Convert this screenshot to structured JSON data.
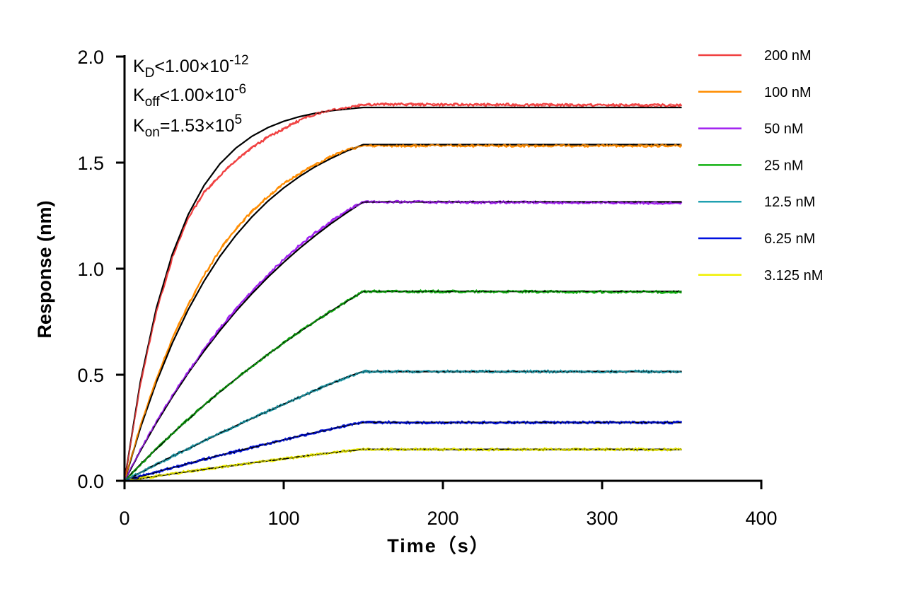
{
  "chart_data": {
    "type": "line",
    "xlabel": "Time（s）",
    "ylabel": "Response (nm)",
    "xlim": [
      0,
      400
    ],
    "ylim": [
      0,
      2.0
    ],
    "xticks": [
      "0",
      "100",
      "200",
      "300",
      "400"
    ],
    "yticks": [
      "0.0",
      "0.5",
      "1.0",
      "1.5",
      "2.0"
    ],
    "grid": false,
    "legend_position": "right",
    "fit_color": "#000000",
    "annotation": {
      "kd": {
        "base": "K",
        "sub": "D",
        "rel": "<1.00×10",
        "exp": "-12"
      },
      "koff": {
        "base": "K",
        "sub": "off",
        "rel": "<1.00×10",
        "exp": "-6"
      },
      "kon": {
        "base": "K",
        "sub": "on",
        "rel": "=1.53×10",
        "exp": "5"
      }
    },
    "x": [
      0,
      10,
      20,
      30,
      40,
      50,
      60,
      70,
      80,
      90,
      100,
      110,
      120,
      130,
      140,
      150,
      350
    ],
    "series": [
      {
        "name": "200 nM",
        "color": "#f04040",
        "values": [
          0,
          0.46,
          0.8,
          1.05,
          1.24,
          1.36,
          1.44,
          1.51,
          1.57,
          1.62,
          1.66,
          1.7,
          1.73,
          1.75,
          1.76,
          1.775,
          1.77
        ],
        "fit": [
          0,
          0.469,
          0.814,
          1.068,
          1.255,
          1.393,
          1.495,
          1.569,
          1.624,
          1.665,
          1.695,
          1.717,
          1.733,
          1.745,
          1.753,
          1.76,
          1.76
        ]
      },
      {
        "name": "100 nM",
        "color": "#ff8c00",
        "values": [
          0,
          0.26,
          0.48,
          0.67,
          0.83,
          0.97,
          1.09,
          1.19,
          1.27,
          1.34,
          1.4,
          1.45,
          1.49,
          1.53,
          1.56,
          1.58,
          1.58
        ],
        "fit": [
          0,
          0.25,
          0.465,
          0.649,
          0.807,
          0.942,
          1.059,
          1.158,
          1.244,
          1.318,
          1.381,
          1.435,
          1.482,
          1.521,
          1.556,
          1.585,
          1.585
        ]
      },
      {
        "name": "50 nM",
        "color": "#a020f0",
        "values": [
          0,
          0.145,
          0.28,
          0.4,
          0.515,
          0.62,
          0.72,
          0.81,
          0.895,
          0.97,
          1.045,
          1.11,
          1.17,
          1.225,
          1.275,
          1.315,
          1.31
        ],
        "fit": [
          0,
          0.142,
          0.273,
          0.395,
          0.508,
          0.612,
          0.709,
          0.799,
          0.882,
          0.959,
          1.03,
          1.096,
          1.157,
          1.214,
          1.266,
          1.315,
          1.315
        ]
      },
      {
        "name": "25 nM",
        "color": "#10b010",
        "values": [
          0,
          0.077,
          0.151,
          0.222,
          0.29,
          0.357,
          0.42,
          0.48,
          0.539,
          0.596,
          0.65,
          0.703,
          0.753,
          0.801,
          0.848,
          0.893,
          0.89
        ],
        "fit": [
          0,
          0.077,
          0.151,
          0.222,
          0.29,
          0.357,
          0.42,
          0.48,
          0.539,
          0.596,
          0.65,
          0.703,
          0.753,
          0.801,
          0.848,
          0.893,
          0.893
        ]
      },
      {
        "name": "12.5 nM",
        "color": "#20a0b0",
        "values": [
          0,
          0.039,
          0.078,
          0.115,
          0.152,
          0.188,
          0.224,
          0.259,
          0.294,
          0.328,
          0.361,
          0.394,
          0.427,
          0.459,
          0.49,
          0.515,
          0.515
        ],
        "fit": [
          0,
          0.039,
          0.078,
          0.115,
          0.152,
          0.188,
          0.224,
          0.259,
          0.294,
          0.328,
          0.361,
          0.394,
          0.427,
          0.459,
          0.49,
          0.515,
          0.515
        ]
      },
      {
        "name": "6.25 nM",
        "color": "#0010e0",
        "values": [
          0,
          0.021,
          0.041,
          0.062,
          0.081,
          0.101,
          0.12,
          0.138,
          0.157,
          0.175,
          0.193,
          0.211,
          0.228,
          0.245,
          0.262,
          0.275,
          0.275
        ],
        "fit": [
          0,
          0.021,
          0.041,
          0.062,
          0.081,
          0.101,
          0.12,
          0.138,
          0.157,
          0.175,
          0.193,
          0.211,
          0.228,
          0.245,
          0.262,
          0.275,
          0.275
        ]
      },
      {
        "name": "3.125 nM",
        "color": "#f0f000",
        "values": [
          0,
          0.011,
          0.022,
          0.033,
          0.044,
          0.054,
          0.064,
          0.074,
          0.085,
          0.094,
          0.104,
          0.113,
          0.123,
          0.132,
          0.141,
          0.148,
          0.148
        ],
        "fit": [
          0,
          0.011,
          0.022,
          0.033,
          0.044,
          0.054,
          0.064,
          0.074,
          0.085,
          0.094,
          0.104,
          0.113,
          0.123,
          0.132,
          0.141,
          0.148,
          0.148
        ]
      }
    ]
  }
}
